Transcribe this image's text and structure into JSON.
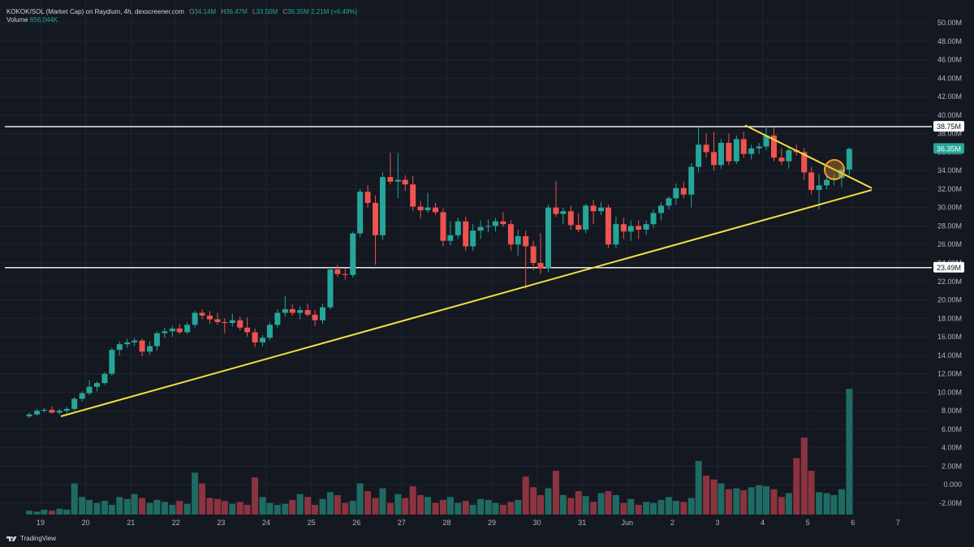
{
  "header": {
    "symbol": "KOKOK/SOL (Market Cap) on Raydium, 4h, dexscreener.com",
    "open_label": "O",
    "open": "34.14M",
    "high_label": "H",
    "high": "36.47M",
    "low_label": "L",
    "low": "33.50M",
    "close_label": "C",
    "close": "36.35M",
    "change": "2.21M (+6.49%)",
    "volume_label": "Volume",
    "volume": "856.044K"
  },
  "branding": {
    "name": "TradingView",
    "icon": "tradingview-logo-icon"
  },
  "colors": {
    "background": "#141820",
    "up": "#26a69a",
    "down": "#ef5350",
    "trendline": "#f5e042",
    "level": "#ffffff",
    "circle": "#f0a030",
    "grid": "#1f2430"
  },
  "chart_data": {
    "type": "candlestick",
    "title": "KOKOK/SOL (Market Cap) on Raydium, 4h, dexscreener.com",
    "unit": "M",
    "x_ticks": [
      "19",
      "20",
      "21",
      "22",
      "23",
      "24",
      "25",
      "26",
      "27",
      "28",
      "29",
      "30",
      "31",
      "Jun",
      "2",
      "3",
      "4",
      "5",
      "6",
      "7"
    ],
    "y_ticks": [
      "50.00M",
      "48.00M",
      "46.00M",
      "44.00M",
      "42.00M",
      "40.00M",
      "38.00M",
      "36.00M",
      "34.00M",
      "32.00M",
      "30.00M",
      "28.00M",
      "26.00M",
      "24.00M",
      "22.00M",
      "20.00M",
      "18.00M",
      "16.00M",
      "14.00M",
      "12.00M",
      "10.00M",
      "8.00M",
      "6.00M",
      "4.00M",
      "2.00M",
      "0.000",
      "-2.00M"
    ],
    "ylim": [
      -2,
      50
    ],
    "grid": true,
    "horizontal_levels": [
      {
        "label": "38.75M",
        "value": 38.75
      },
      {
        "label": "23.49M",
        "value": 23.49
      }
    ],
    "current_price": {
      "label": "36.35M",
      "value": 36.35
    },
    "trendlines": [
      {
        "name": "rising support",
        "x": [
          19.45,
          26.5
        ],
        "y": [
          7.4,
          31.9
        ]
      },
      {
        "name": "falling resistance",
        "x": [
          3.7,
          26.5
        ],
        "y": [
          38.9,
          32.1
        ]
      }
    ],
    "annotation": {
      "type": "circle",
      "x": 5.65,
      "y": 34.1
    },
    "candles": [
      {
        "t": 18.75,
        "o": 7.4,
        "h": 7.8,
        "l": 7.2,
        "c": 7.6
      },
      {
        "t": 18.92,
        "o": 7.6,
        "h": 8.2,
        "l": 7.5,
        "c": 8.0
      },
      {
        "t": 19.08,
        "o": 8.0,
        "h": 8.3,
        "l": 7.8,
        "c": 8.1
      },
      {
        "t": 19.25,
        "o": 8.1,
        "h": 8.5,
        "l": 7.7,
        "c": 7.8
      },
      {
        "t": 19.42,
        "o": 7.8,
        "h": 8.2,
        "l": 7.6,
        "c": 8.0
      },
      {
        "t": 19.58,
        "o": 8.0,
        "h": 8.4,
        "l": 7.7,
        "c": 8.2
      },
      {
        "t": 19.75,
        "o": 8.2,
        "h": 9.5,
        "l": 8.0,
        "c": 9.3
      },
      {
        "t": 19.92,
        "o": 9.3,
        "h": 10.1,
        "l": 9.0,
        "c": 9.9
      },
      {
        "t": 20.08,
        "o": 9.9,
        "h": 11.3,
        "l": 9.7,
        "c": 10.6
      },
      {
        "t": 20.25,
        "o": 10.6,
        "h": 11.2,
        "l": 10.1,
        "c": 11.0
      },
      {
        "t": 20.42,
        "o": 11.0,
        "h": 12.2,
        "l": 10.8,
        "c": 12.0
      },
      {
        "t": 20.58,
        "o": 12.0,
        "h": 14.8,
        "l": 11.8,
        "c": 14.6
      },
      {
        "t": 20.75,
        "o": 14.6,
        "h": 15.5,
        "l": 14.0,
        "c": 15.2
      },
      {
        "t": 20.92,
        "o": 15.2,
        "h": 15.8,
        "l": 14.8,
        "c": 15.4
      },
      {
        "t": 21.08,
        "o": 15.4,
        "h": 15.9,
        "l": 15.0,
        "c": 15.6
      },
      {
        "t": 21.25,
        "o": 15.6,
        "h": 15.8,
        "l": 13.9,
        "c": 14.4
      },
      {
        "t": 21.42,
        "o": 14.4,
        "h": 15.5,
        "l": 14.1,
        "c": 15.0
      },
      {
        "t": 21.58,
        "o": 15.0,
        "h": 16.6,
        "l": 14.5,
        "c": 16.4
      },
      {
        "t": 21.75,
        "o": 16.4,
        "h": 17.0,
        "l": 15.9,
        "c": 16.6
      },
      {
        "t": 21.92,
        "o": 16.6,
        "h": 17.2,
        "l": 16.0,
        "c": 16.9
      },
      {
        "t": 22.08,
        "o": 16.9,
        "h": 17.4,
        "l": 16.3,
        "c": 16.5
      },
      {
        "t": 22.25,
        "o": 16.5,
        "h": 17.6,
        "l": 16.3,
        "c": 17.3
      },
      {
        "t": 22.42,
        "o": 17.3,
        "h": 18.8,
        "l": 17.0,
        "c": 18.6
      },
      {
        "t": 22.58,
        "o": 18.6,
        "h": 19.0,
        "l": 17.9,
        "c": 18.3
      },
      {
        "t": 22.75,
        "o": 18.3,
        "h": 18.8,
        "l": 17.4,
        "c": 17.9
      },
      {
        "t": 22.92,
        "o": 17.9,
        "h": 18.6,
        "l": 17.3,
        "c": 17.6
      },
      {
        "t": 23.08,
        "o": 17.6,
        "h": 18.0,
        "l": 16.4,
        "c": 17.5
      },
      {
        "t": 23.25,
        "o": 17.5,
        "h": 18.5,
        "l": 17.1,
        "c": 17.8
      },
      {
        "t": 23.42,
        "o": 17.8,
        "h": 18.2,
        "l": 16.7,
        "c": 17.0
      },
      {
        "t": 23.58,
        "o": 17.0,
        "h": 18.1,
        "l": 16.0,
        "c": 16.5
      },
      {
        "t": 23.75,
        "o": 16.5,
        "h": 16.9,
        "l": 14.9,
        "c": 15.4
      },
      {
        "t": 23.92,
        "o": 15.4,
        "h": 16.2,
        "l": 15.0,
        "c": 15.9
      },
      {
        "t": 24.08,
        "o": 15.9,
        "h": 17.6,
        "l": 15.6,
        "c": 17.3
      },
      {
        "t": 24.25,
        "o": 17.3,
        "h": 19.0,
        "l": 17.0,
        "c": 18.6
      },
      {
        "t": 24.42,
        "o": 18.6,
        "h": 20.4,
        "l": 18.2,
        "c": 19.0
      },
      {
        "t": 24.58,
        "o": 19.0,
        "h": 19.5,
        "l": 18.3,
        "c": 18.6
      },
      {
        "t": 24.75,
        "o": 18.6,
        "h": 19.3,
        "l": 17.9,
        "c": 18.9
      },
      {
        "t": 24.92,
        "o": 18.9,
        "h": 19.6,
        "l": 18.2,
        "c": 18.4
      },
      {
        "t": 25.08,
        "o": 18.4,
        "h": 18.9,
        "l": 17.2,
        "c": 17.8
      },
      {
        "t": 25.25,
        "o": 17.8,
        "h": 19.6,
        "l": 17.4,
        "c": 19.2
      },
      {
        "t": 25.42,
        "o": 19.2,
        "h": 23.6,
        "l": 19.0,
        "c": 23.3
      },
      {
        "t": 25.58,
        "o": 23.3,
        "h": 23.8,
        "l": 22.5,
        "c": 22.8
      },
      {
        "t": 25.75,
        "o": 22.8,
        "h": 23.4,
        "l": 22.2,
        "c": 22.7
      },
      {
        "t": 25.92,
        "o": 22.7,
        "h": 27.4,
        "l": 22.4,
        "c": 27.2
      },
      {
        "t": 26.08,
        "o": 27.2,
        "h": 32.0,
        "l": 26.8,
        "c": 31.7
      },
      {
        "t": 26.25,
        "o": 31.7,
        "h": 32.4,
        "l": 30.0,
        "c": 30.5
      },
      {
        "t": 26.42,
        "o": 30.5,
        "h": 31.3,
        "l": 23.8,
        "c": 27.0
      },
      {
        "t": 26.58,
        "o": 27.0,
        "h": 33.8,
        "l": 26.5,
        "c": 33.3
      },
      {
        "t": 26.75,
        "o": 33.3,
        "h": 35.9,
        "l": 32.5,
        "c": 32.8
      },
      {
        "t": 26.92,
        "o": 32.8,
        "h": 35.9,
        "l": 31.0,
        "c": 33.0
      },
      {
        "t": 27.08,
        "o": 33.0,
        "h": 33.5,
        "l": 31.8,
        "c": 32.5
      },
      {
        "t": 27.25,
        "o": 32.5,
        "h": 33.4,
        "l": 29.6,
        "c": 30.1
      },
      {
        "t": 27.42,
        "o": 30.1,
        "h": 30.7,
        "l": 28.8,
        "c": 29.7
      },
      {
        "t": 27.58,
        "o": 29.7,
        "h": 31.6,
        "l": 29.4,
        "c": 30.0
      },
      {
        "t": 27.75,
        "o": 30.0,
        "h": 30.5,
        "l": 29.2,
        "c": 29.5
      },
      {
        "t": 27.92,
        "o": 29.5,
        "h": 29.9,
        "l": 25.8,
        "c": 26.4
      },
      {
        "t": 28.08,
        "o": 26.4,
        "h": 28.5,
        "l": 25.9,
        "c": 27.0
      },
      {
        "t": 28.25,
        "o": 27.0,
        "h": 28.9,
        "l": 26.6,
        "c": 28.5
      },
      {
        "t": 28.42,
        "o": 28.5,
        "h": 29.0,
        "l": 25.3,
        "c": 25.8
      },
      {
        "t": 28.58,
        "o": 25.8,
        "h": 28.2,
        "l": 25.3,
        "c": 27.5
      },
      {
        "t": 28.75,
        "o": 27.5,
        "h": 28.6,
        "l": 26.6,
        "c": 27.9
      },
      {
        "t": 28.92,
        "o": 27.9,
        "h": 28.7,
        "l": 27.3,
        "c": 28.0
      },
      {
        "t": 29.08,
        "o": 28.0,
        "h": 28.9,
        "l": 27.4,
        "c": 28.5
      },
      {
        "t": 29.25,
        "o": 28.5,
        "h": 29.5,
        "l": 27.9,
        "c": 28.2
      },
      {
        "t": 29.42,
        "o": 28.2,
        "h": 28.6,
        "l": 25.3,
        "c": 26.0
      },
      {
        "t": 29.58,
        "o": 26.0,
        "h": 27.6,
        "l": 24.8,
        "c": 26.9
      },
      {
        "t": 29.75,
        "o": 26.9,
        "h": 27.5,
        "l": 21.2,
        "c": 25.8
      },
      {
        "t": 29.92,
        "o": 25.8,
        "h": 26.4,
        "l": 23.2,
        "c": 24.0
      },
      {
        "t": 30.08,
        "o": 24.0,
        "h": 27.2,
        "l": 22.8,
        "c": 23.4
      },
      {
        "t": 30.25,
        "o": 23.4,
        "h": 30.3,
        "l": 23.0,
        "c": 30.0
      },
      {
        "t": 30.42,
        "o": 30.0,
        "h": 32.9,
        "l": 29.0,
        "c": 29.3
      },
      {
        "t": 30.58,
        "o": 29.3,
        "h": 30.0,
        "l": 28.2,
        "c": 29.6
      },
      {
        "t": 30.75,
        "o": 29.6,
        "h": 30.2,
        "l": 27.6,
        "c": 28.1
      },
      {
        "t": 30.92,
        "o": 28.1,
        "h": 29.4,
        "l": 27.3,
        "c": 27.6
      },
      {
        "t": 31.08,
        "o": 27.6,
        "h": 30.4,
        "l": 27.2,
        "c": 30.2
      },
      {
        "t": 31.25,
        "o": 30.2,
        "h": 30.8,
        "l": 28.2,
        "c": 29.6
      },
      {
        "t": 31.42,
        "o": 29.6,
        "h": 30.6,
        "l": 29.2,
        "c": 30.0
      },
      {
        "t": 31.58,
        "o": 30.0,
        "h": 30.3,
        "l": 25.6,
        "c": 26.0
      },
      {
        "t": 31.75,
        "o": 26.0,
        "h": 29.0,
        "l": 25.6,
        "c": 28.2
      },
      {
        "t": 31.92,
        "o": 28.2,
        "h": 28.9,
        "l": 26.6,
        "c": 27.4
      },
      {
        "t": 32.08,
        "o": 27.4,
        "h": 28.6,
        "l": 26.4,
        "c": 28.0
      },
      {
        "t": 32.25,
        "o": 28.0,
        "h": 28.6,
        "l": 26.6,
        "c": 27.6
      },
      {
        "t": 32.42,
        "o": 27.6,
        "h": 28.6,
        "l": 27.0,
        "c": 28.2
      },
      {
        "t": 32.58,
        "o": 28.2,
        "h": 29.8,
        "l": 27.8,
        "c": 29.4
      },
      {
        "t": 32.75,
        "o": 29.4,
        "h": 30.6,
        "l": 28.6,
        "c": 30.2
      },
      {
        "t": 32.92,
        "o": 30.2,
        "h": 31.2,
        "l": 29.8,
        "c": 31.0
      },
      {
        "t": 33.08,
        "o": 31.0,
        "h": 32.6,
        "l": 30.3,
        "c": 32.1
      },
      {
        "t": 33.25,
        "o": 32.1,
        "h": 32.8,
        "l": 31.0,
        "c": 31.4
      },
      {
        "t": 33.42,
        "o": 31.4,
        "h": 34.8,
        "l": 30.0,
        "c": 34.4
      },
      {
        "t": 33.58,
        "o": 34.4,
        "h": 38.7,
        "l": 33.8,
        "c": 36.8
      },
      {
        "t": 33.75,
        "o": 36.8,
        "h": 38.0,
        "l": 35.4,
        "c": 36.0
      },
      {
        "t": 33.92,
        "o": 36.0,
        "h": 38.2,
        "l": 34.0,
        "c": 34.6
      },
      {
        "t": 34.08,
        "o": 34.6,
        "h": 37.4,
        "l": 34.2,
        "c": 37.0
      },
      {
        "t": 34.25,
        "o": 37.0,
        "h": 38.0,
        "l": 34.6,
        "c": 35.0
      },
      {
        "t": 34.42,
        "o": 35.0,
        "h": 37.8,
        "l": 34.7,
        "c": 37.4
      },
      {
        "t": 34.58,
        "o": 37.4,
        "h": 38.2,
        "l": 35.4,
        "c": 35.8
      },
      {
        "t": 34.75,
        "o": 35.8,
        "h": 36.8,
        "l": 35.2,
        "c": 36.4
      },
      {
        "t": 34.92,
        "o": 36.4,
        "h": 37.0,
        "l": 35.8,
        "c": 36.6
      },
      {
        "t": 35.08,
        "o": 36.6,
        "h": 38.8,
        "l": 36.2,
        "c": 37.8
      },
      {
        "t": 35.25,
        "o": 37.8,
        "h": 38.7,
        "l": 35.0,
        "c": 35.4
      },
      {
        "t": 35.42,
        "o": 35.4,
        "h": 36.4,
        "l": 34.6,
        "c": 35.0
      },
      {
        "t": 35.58,
        "o": 35.0,
        "h": 36.6,
        "l": 34.2,
        "c": 36.2
      },
      {
        "t": 35.75,
        "o": 36.2,
        "h": 36.8,
        "l": 35.6,
        "c": 36.0
      },
      {
        "t": 35.92,
        "o": 36.0,
        "h": 36.4,
        "l": 33.0,
        "c": 33.8
      },
      {
        "t": 36.08,
        "o": 33.8,
        "h": 34.4,
        "l": 31.4,
        "c": 31.9
      },
      {
        "t": 36.25,
        "o": 31.9,
        "h": 33.6,
        "l": 29.8,
        "c": 32.4
      },
      {
        "t": 36.42,
        "o": 32.4,
        "h": 33.4,
        "l": 32.0,
        "c": 33.0
      },
      {
        "t": 36.58,
        "o": 33.0,
        "h": 33.6,
        "l": 32.4,
        "c": 33.2
      },
      {
        "t": 36.75,
        "o": 33.2,
        "h": 34.4,
        "l": 32.2,
        "c": 34.1
      },
      {
        "t": 36.92,
        "o": 34.1,
        "h": 36.5,
        "l": 33.5,
        "c": 36.35
      }
    ],
    "volume": [
      0.4,
      0.3,
      0.5,
      0.4,
      0.6,
      0.5,
      3.2,
      1.8,
      1.5,
      1.2,
      1.4,
      1.0,
      1.8,
      1.6,
      2.1,
      1.7,
      1.2,
      1.5,
      1.3,
      1.0,
      1.4,
      1.1,
      4.3,
      3.2,
      1.7,
      1.6,
      1.4,
      1.1,
      1.3,
      1.0,
      3.8,
      1.8,
      1.2,
      1.0,
      1.1,
      1.5,
      2.1,
      1.8,
      1.0,
      1.6,
      2.3,
      2.0,
      1.2,
      1.4,
      3.2,
      2.4,
      1.7,
      2.7,
      1.2,
      2.1,
      1.7,
      2.9,
      2.0,
      1.8,
      1.2,
      1.5,
      1.8,
      1.2,
      1.4,
      1.0,
      1.6,
      1.5,
      1.2,
      1.0,
      1.3,
      1.5,
      3.9,
      2.8,
      2.0,
      2.7,
      4.5,
      2.0,
      1.7,
      2.4,
      1.9,
      1.3,
      2.2,
      2.4,
      2.0,
      1.2,
      1.6,
      1.0,
      1.3,
      1.2,
      1.5,
      1.8,
      1.4,
      1.3,
      1.7,
      5.5,
      4.0,
      3.6,
      3.2,
      2.6,
      2.7,
      2.5,
      2.8,
      3.0,
      2.9,
      2.6,
      1.8,
      2.2,
      5.8,
      7.9,
      4.5,
      2.3,
      2.2,
      2.0,
      2.6,
      12.9
    ],
    "volume_axis": [
      -2,
      50
    ]
  }
}
